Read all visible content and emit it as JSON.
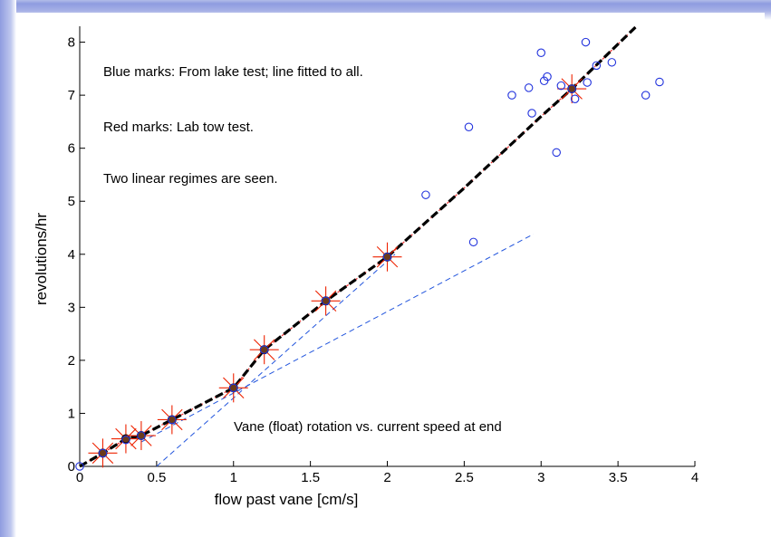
{
  "chart_data": {
    "type": "scatter",
    "xlabel": "flow past vane  [cm/s]",
    "ylabel": "revolutions/hr",
    "xlim": [
      0,
      4
    ],
    "ylim": [
      0,
      8.3
    ],
    "xticks": [
      "0",
      "0.5",
      "1",
      "1.5",
      "2",
      "2.5",
      "3",
      "3.5",
      "4"
    ],
    "yticks": [
      "0",
      "1",
      "2",
      "3",
      "4",
      "5",
      "6",
      "7",
      "8"
    ],
    "xtick_values": [
      0,
      0.5,
      1,
      1.5,
      2,
      2.5,
      3,
      3.5,
      4
    ],
    "ytick_values": [
      0,
      1,
      2,
      3,
      4,
      5,
      6,
      7,
      8
    ],
    "grid": false,
    "annotations": [
      "Blue marks: From lake test; line fitted to all.",
      "Red marks: Lab tow test.",
      "Two linear regimes are seen.",
      "Vane (float) rotation vs. current speed at end"
    ],
    "series": [
      {
        "kind": "lake-circles",
        "color": "#2233dd",
        "x": [
          0.0,
          0.15,
          0.3,
          0.4,
          0.6,
          1.0,
          1.2,
          1.6,
          2.0,
          2.25,
          2.53,
          2.56,
          2.81,
          2.92,
          2.94,
          3.0,
          3.02,
          3.04,
          3.1,
          3.13,
          3.2,
          3.22,
          3.29,
          3.3,
          3.36,
          3.46,
          3.68,
          3.77
        ],
        "y": [
          0.0,
          0.25,
          0.5,
          0.58,
          0.88,
          1.48,
          2.2,
          3.12,
          3.95,
          5.12,
          6.4,
          4.23,
          7.0,
          7.14,
          6.66,
          7.8,
          7.27,
          7.35,
          5.92,
          7.18,
          7.12,
          6.93,
          8.0,
          7.24,
          7.56,
          7.62,
          7.0,
          7.25
        ]
      },
      {
        "kind": "lab-tow-stars",
        "color": "#ee2200",
        "x": [
          0.15,
          0.3,
          0.4,
          0.6,
          1.0,
          1.2,
          1.6,
          2.0,
          3.2
        ],
        "y": [
          0.25,
          0.52,
          0.58,
          0.88,
          1.48,
          2.2,
          3.12,
          3.95,
          7.12
        ]
      },
      {
        "kind": "fitted-line",
        "color": "#000000",
        "style": "thick-dashed",
        "x": [
          0.0,
          0.15,
          0.3,
          0.4,
          0.6,
          1.0,
          1.2,
          1.6,
          2.0,
          2.5,
          3.0,
          3.2,
          3.62
        ],
        "y": [
          0.0,
          0.25,
          0.52,
          0.58,
          0.88,
          1.48,
          2.2,
          3.12,
          3.95,
          5.25,
          6.6,
          7.12,
          8.3
        ]
      },
      {
        "kind": "regime-line-1",
        "color": "#2255dd",
        "style": "thin-dashed",
        "x": [
          0.4,
          2.95
        ],
        "y": [
          0.46,
          4.38
        ]
      },
      {
        "kind": "regime-line-2",
        "color": "#2255dd",
        "style": "thin-dashed",
        "x": [
          0.5,
          2.05
        ],
        "y": [
          0.0,
          4.0
        ]
      }
    ]
  }
}
